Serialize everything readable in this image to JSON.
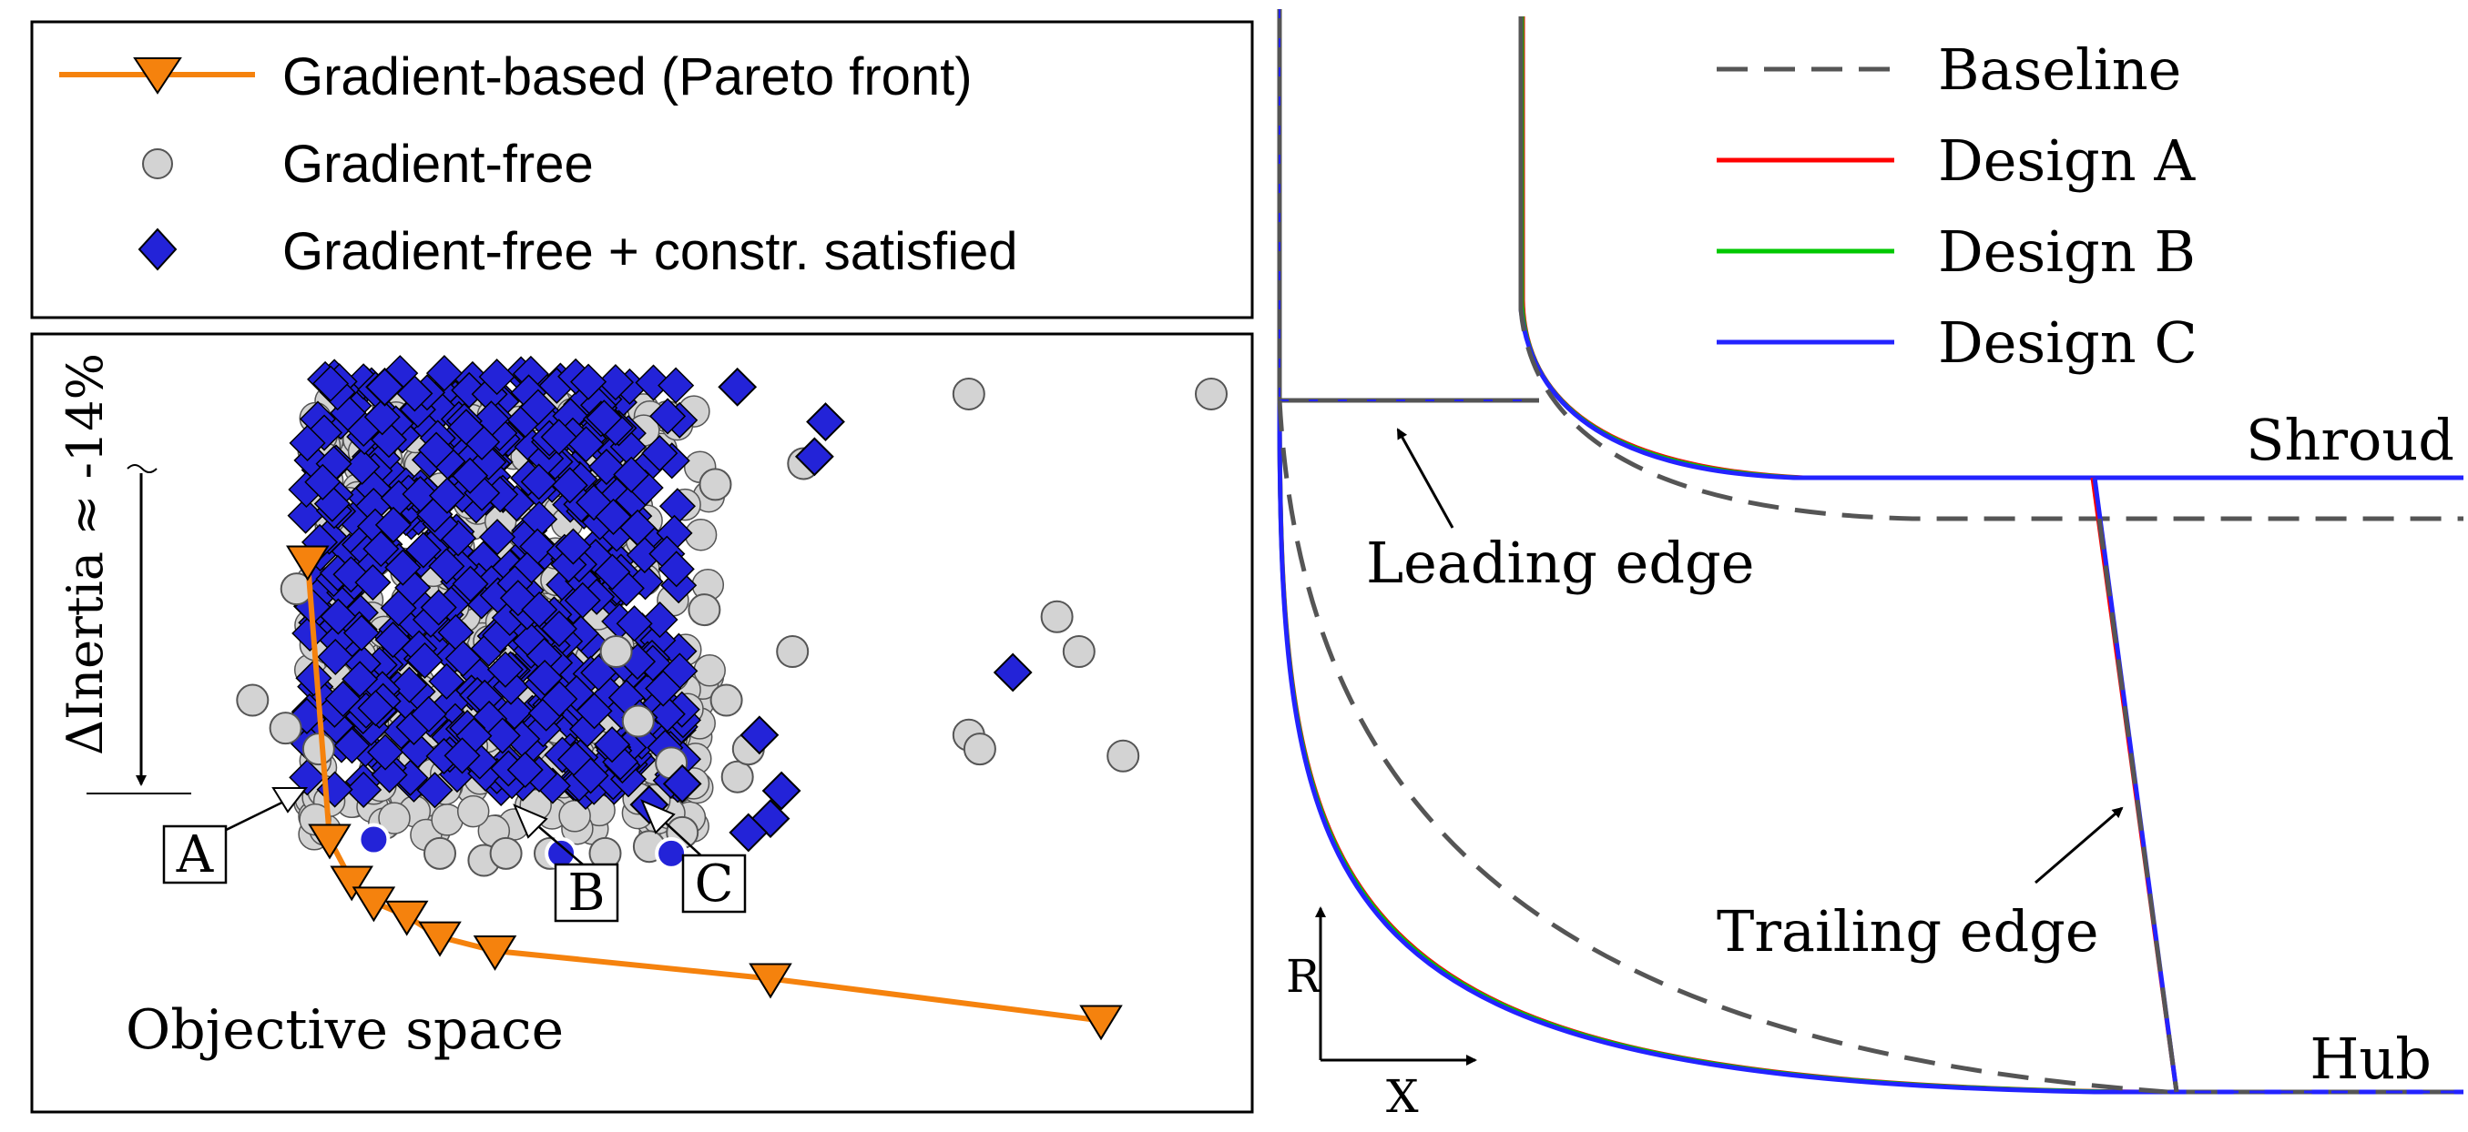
{
  "chart_data": [
    {
      "type": "scatter",
      "panel": "objective-space",
      "legend": {
        "placement": "top-left-outside",
        "entries": [
          {
            "label": "Gradient-based (Pareto front)",
            "marker": "triangle-down",
            "color": "#f5820d"
          },
          {
            "label": "Gradient-free",
            "marker": "circle",
            "color": "#d3d3d3"
          },
          {
            "label": "Gradient-free + constr. satisfied",
            "marker": "diamond",
            "color": "#2323d8"
          }
        ]
      },
      "panel_label": "Objective space",
      "annotation": "ΔInertia ≈ -14%",
      "design_labels": [
        "A",
        "B",
        "C"
      ],
      "grid": false,
      "axes_visible": false,
      "xlim": [
        0,
        1
      ],
      "ylim": [
        0,
        1
      ],
      "series": [
        {
          "name": "Gradient-based (Pareto front)",
          "x": [
            0.18,
            0.2,
            0.22,
            0.24,
            0.27,
            0.3,
            0.35,
            0.6,
            0.9
          ],
          "y": [
            0.73,
            0.33,
            0.27,
            0.24,
            0.22,
            0.19,
            0.17,
            0.13,
            0.07
          ]
        },
        {
          "name": "Gradient-free",
          "x": [
            0.78,
            1.0,
            0.17,
            0.13,
            0.16,
            0.19,
            0.86,
            0.88,
            0.78,
            0.79,
            0.92,
            0.62,
            0.56,
            0.51,
            0.57,
            0.58,
            0.48,
            0.46,
            0.54,
            0.63,
            0.55,
            0.3,
            0.34,
            0.4,
            0.45,
            0.49,
            0.52,
            0.36
          ],
          "y": [
            0.97,
            0.97,
            0.69,
            0.53,
            0.49,
            0.46,
            0.65,
            0.6,
            0.48,
            0.46,
            0.45,
            0.6,
            0.53,
            0.44,
            0.42,
            0.46,
            0.5,
            0.6,
            0.66,
            0.87,
            0.84,
            0.31,
            0.3,
            0.31,
            0.31,
            0.32,
            0.34,
            0.31
          ]
        },
        {
          "name": "Gradient-free + constr. satisfied",
          "x": [
            0.25,
            0.57,
            0.65,
            0.64,
            0.82,
            0.59,
            0.49,
            0.52,
            0.6,
            0.58,
            0.61
          ],
          "y": [
            0.98,
            0.98,
            0.93,
            0.88,
            0.57,
            0.48,
            0.38,
            0.41,
            0.36,
            0.34,
            0.4
          ]
        }
      ],
      "marked_points": [
        {
          "label": "A",
          "x": 0.24,
          "y": 0.33
        },
        {
          "label": "B",
          "x": 0.41,
          "y": 0.31
        },
        {
          "label": "C",
          "x": 0.51,
          "y": 0.31
        }
      ]
    },
    {
      "type": "line",
      "panel": "meridional-view",
      "legend": {
        "placement": "top-right",
        "entries": [
          {
            "label": "Baseline",
            "color": "#555555",
            "style": "dashed"
          },
          {
            "label": "Design A",
            "color": "#ff0000",
            "style": "solid"
          },
          {
            "label": "Design B",
            "color": "#00c800",
            "style": "solid"
          },
          {
            "label": "Design C",
            "color": "#2323ff",
            "style": "solid"
          }
        ]
      },
      "labels": {
        "shroud": "Shroud",
        "hub": "Hub",
        "leading_edge": "Leading edge",
        "trailing_edge": "Trailing edge",
        "x_axis": "X",
        "r_axis": "R"
      }
    }
  ]
}
